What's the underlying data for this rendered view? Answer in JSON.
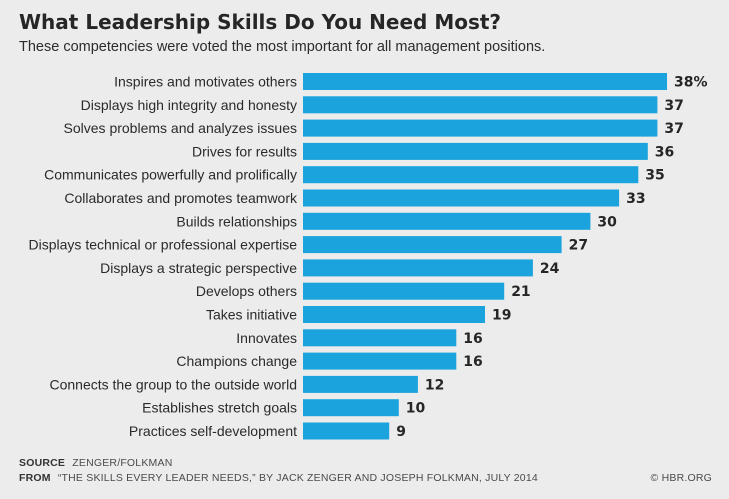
{
  "title": "What Leadership Skills Do You Need Most?",
  "subtitle": "These competencies were voted the most important for all management positions.",
  "chart_data": {
    "type": "bar",
    "orientation": "horizontal",
    "title": "What Leadership Skills Do You Need Most?",
    "subtitle": "These competencies were voted the most important for all management positions.",
    "categories": [
      "Inspires and motivates others",
      "Displays high integrity and honesty",
      "Solves problems and analyzes issues",
      "Drives for results",
      "Communicates powerfully and prolifically",
      "Collaborates and promotes teamwork",
      "Builds relationships",
      "Displays technical or professional expertise",
      "Displays a strategic perspective",
      "Develops others",
      "Takes initiative",
      "Innovates",
      "Champions change",
      "Connects the group to the outside world",
      "Establishes stretch goals",
      "Practices self-development"
    ],
    "values": [
      38,
      37,
      37,
      36,
      35,
      33,
      30,
      27,
      24,
      21,
      19,
      16,
      16,
      12,
      10,
      9
    ],
    "value_labels": [
      "38%",
      "37",
      "37",
      "36",
      "35",
      "33",
      "30",
      "27",
      "24",
      "21",
      "19",
      "16",
      "16",
      "12",
      "10",
      "9"
    ],
    "unit": "%",
    "xlim": [
      0,
      38
    ],
    "bar_color": "#1aa3dd",
    "grid": false,
    "legend": "none"
  },
  "footer": {
    "source_key": "SOURCE",
    "source_text": "ZENGER/FOLKMAN",
    "from_key": "FROM",
    "from_text": "“THE SKILLS EVERY LEADER NEEDS,” BY JACK ZENGER AND JOSEPH FOLKMAN, JULY 2014",
    "credit": "© HBR.ORG"
  }
}
